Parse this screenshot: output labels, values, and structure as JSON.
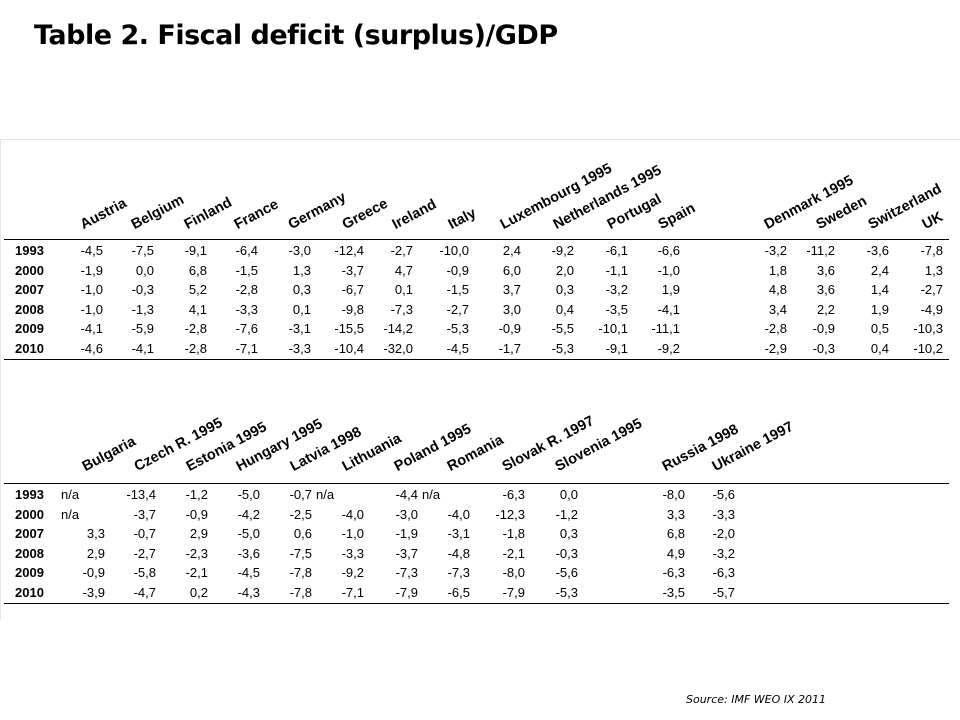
{
  "title": "Table  2. Fiscal deficit (surplus)/GDP",
  "source": "Source: IMF WEO IX 2011",
  "panel1": {
    "columns": [
      "Austria",
      "Belgium",
      "Finland",
      "France",
      "Germany",
      "Greece",
      "Ireland",
      "Italy",
      "Luxembourg 1995",
      "Netherlands 1995",
      "Portugal",
      "Spain",
      "",
      "Denmark 1995",
      "Sweden",
      "Switzerland",
      "UK"
    ],
    "rows": [
      {
        "year": "1993",
        "values": [
          "-4,5",
          "-7,5",
          "-9,1",
          "-6,4",
          "-3,0",
          "-12,4",
          "-2,7",
          "-10,0",
          "2,4",
          "-9,2",
          "-6,1",
          "-6,6",
          "",
          "-3,2",
          "-11,2",
          "-3,6",
          "-7,8"
        ]
      },
      {
        "year": "2000",
        "values": [
          "-1,9",
          "0,0",
          "6,8",
          "-1,5",
          "1,3",
          "-3,7",
          "4,7",
          "-0,9",
          "6,0",
          "2,0",
          "-1,1",
          "-1,0",
          "",
          "1,8",
          "3,6",
          "2,4",
          "1,3"
        ]
      },
      {
        "year": "2007",
        "values": [
          "-1,0",
          "-0,3",
          "5,2",
          "-2,8",
          "0,3",
          "-6,7",
          "0,1",
          "-1,5",
          "3,7",
          "0,3",
          "-3,2",
          "1,9",
          "",
          "4,8",
          "3,6",
          "1,4",
          "-2,7"
        ]
      },
      {
        "year": "2008",
        "values": [
          "-1,0",
          "-1,3",
          "4,1",
          "-3,3",
          "0,1",
          "-9,8",
          "-7,3",
          "-2,7",
          "3,0",
          "0,4",
          "-3,5",
          "-4,1",
          "",
          "3,4",
          "2,2",
          "1,9",
          "-4,9"
        ]
      },
      {
        "year": "2009",
        "values": [
          "-4,1",
          "-5,9",
          "-2,8",
          "-7,6",
          "-3,1",
          "-15,5",
          "-14,2",
          "-5,3",
          "-0,9",
          "-5,5",
          "-10,1",
          "-11,1",
          "",
          "-2,8",
          "-0,9",
          "0,5",
          "-10,3"
        ]
      },
      {
        "year": "2010",
        "values": [
          "-4,6",
          "-4,1",
          "-2,8",
          "-7,1",
          "-3,3",
          "-10,4",
          "-32,0",
          "-4,5",
          "-1,7",
          "-5,3",
          "-9,1",
          "-9,2",
          "",
          "-2,9",
          "-0,3",
          "0,4",
          "-10,2"
        ]
      }
    ]
  },
  "panel2": {
    "columns": [
      "Bulgaria",
      "Czech R. 1995",
      "Estonia 1995",
      "Hungary 1995",
      "Latvia 1998",
      "Lithuania",
      "Poland 1995",
      "Romania",
      "Slovak R. 1997",
      "Slovenia 1995",
      "",
      "Russia 1998",
      "Ukraine 1997"
    ],
    "rows": [
      {
        "year": "1993",
        "values": [
          "n/a",
          "-13,4",
          "-1,2",
          "-5,0",
          "-0,7",
          "n/a",
          "-4,4",
          "n/a",
          "-6,3",
          "0,0",
          "",
          "-8,0",
          "-5,6"
        ]
      },
      {
        "year": "2000",
        "values": [
          "n/a",
          "-3,7",
          "-0,9",
          "-4,2",
          "-2,5",
          "-4,0",
          "-3,0",
          "-4,0",
          "-12,3",
          "-1,2",
          "",
          "3,3",
          "-3,3"
        ]
      },
      {
        "year": "2007",
        "values": [
          "3,3",
          "-0,7",
          "2,9",
          "-5,0",
          "0,6",
          "-1,0",
          "-1,9",
          "-3,1",
          "-1,8",
          "0,3",
          "",
          "6,8",
          "-2,0"
        ]
      },
      {
        "year": "2008",
        "values": [
          "2,9",
          "-2,7",
          "-2,3",
          "-3,6",
          "-7,5",
          "-3,3",
          "-3,7",
          "-4,8",
          "-2,1",
          "-0,3",
          "",
          "4,9",
          "-3,2"
        ]
      },
      {
        "year": "2009",
        "values": [
          "-0,9",
          "-5,8",
          "-2,1",
          "-4,5",
          "-7,8",
          "-9,2",
          "-7,3",
          "-7,3",
          "-8,0",
          "-5,6",
          "",
          "-6,3",
          "-6,3"
        ]
      },
      {
        "year": "2010",
        "values": [
          "-3,9",
          "-4,7",
          "0,2",
          "-4,3",
          "-7,8",
          "-7,1",
          "-7,9",
          "-6,5",
          "-7,9",
          "-5,3",
          "",
          "-3,5",
          "-5,7"
        ]
      }
    ]
  }
}
